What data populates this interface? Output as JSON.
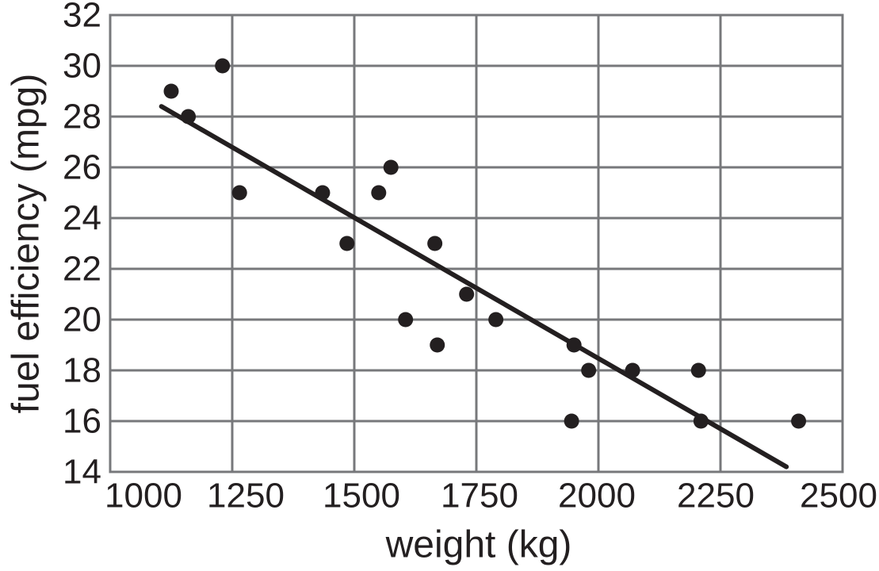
{
  "chart_data": {
    "type": "scatter",
    "title": "",
    "xlabel": "weight (kg)",
    "ylabel": "fuel efficiency (mpg)",
    "xlim": [
      1000,
      2500
    ],
    "ylim": [
      14,
      32
    ],
    "xticks": [
      1000,
      1250,
      1500,
      1750,
      2000,
      2250,
      2500
    ],
    "yticks": [
      14,
      16,
      18,
      20,
      22,
      24,
      26,
      28,
      30,
      32
    ],
    "grid": true,
    "legend_position": "none",
    "points": [
      {
        "weight_kg": 1125,
        "mpg": 29
      },
      {
        "weight_kg": 1160,
        "mpg": 28
      },
      {
        "weight_kg": 1230,
        "mpg": 30
      },
      {
        "weight_kg": 1265,
        "mpg": 25
      },
      {
        "weight_kg": 1435,
        "mpg": 25
      },
      {
        "weight_kg": 1485,
        "mpg": 23
      },
      {
        "weight_kg": 1550,
        "mpg": 25
      },
      {
        "weight_kg": 1575,
        "mpg": 26
      },
      {
        "weight_kg": 1605,
        "mpg": 20
      },
      {
        "weight_kg": 1665,
        "mpg": 23
      },
      {
        "weight_kg": 1670,
        "mpg": 19
      },
      {
        "weight_kg": 1730,
        "mpg": 21
      },
      {
        "weight_kg": 1790,
        "mpg": 20
      },
      {
        "weight_kg": 1945,
        "mpg": 16
      },
      {
        "weight_kg": 1950,
        "mpg": 19
      },
      {
        "weight_kg": 1980,
        "mpg": 18
      },
      {
        "weight_kg": 2070,
        "mpg": 18
      },
      {
        "weight_kg": 2205,
        "mpg": 18
      },
      {
        "weight_kg": 2210,
        "mpg": 16
      },
      {
        "weight_kg": 2410,
        "mpg": 16
      }
    ],
    "trend_line": {
      "x1": 1105,
      "y1": 28.4,
      "x2": 2385,
      "y2": 14.2
    },
    "colors": {
      "point": "#231f20",
      "trend_line": "#231f20",
      "grid": "#77787b",
      "text": "#231f20",
      "background": "#ffffff"
    }
  }
}
